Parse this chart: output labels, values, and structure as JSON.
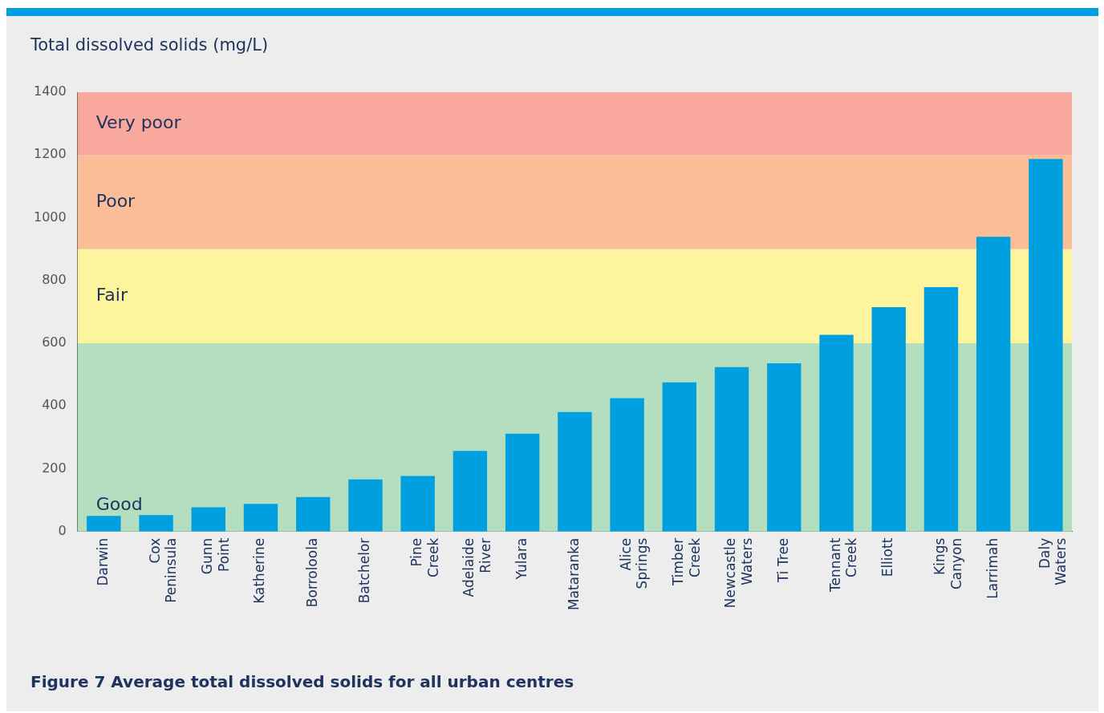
{
  "chart_data": {
    "type": "bar",
    "ylabel": "Total dissolved solids (mg/L)",
    "categories": [
      "Darwin",
      "Cox Peninsula",
      "Gunn Point",
      "Katherine",
      "Borroloola",
      "Batchelor",
      "Pine Creek",
      "Adelaide River",
      "Yulara",
      "Mataranka",
      "Alice Springs",
      "Timber Creek",
      "Newcastle Waters",
      "Ti Tree",
      "Tennant Creek",
      "Elliott",
      "Kings Canyon",
      "Larrimah",
      "Daly Waters"
    ],
    "values": [
      50,
      52,
      77,
      88,
      110,
      166,
      177,
      257,
      312,
      381,
      425,
      475,
      524,
      536,
      627,
      715,
      779,
      939,
      1187
    ],
    "color": "#009fe0",
    "ylim": [
      0,
      1400
    ],
    "yticks": [
      0,
      200,
      400,
      600,
      800,
      1000,
      1200,
      1400
    ],
    "grid": false,
    "bands": [
      {
        "axis": "y",
        "from": 0,
        "to": 600,
        "label": "Good",
        "color": "#b3dfc0"
      },
      {
        "axis": "y",
        "from": 600,
        "to": 900,
        "label": "Fair",
        "color": "#fdf59e"
      },
      {
        "axis": "y",
        "from": 900,
        "to": 1200,
        "label": "Poor",
        "color": "#fbbd98"
      },
      {
        "axis": "y",
        "from": 1200,
        "to": 1400,
        "label": "Very poor",
        "color": "#f8a89c"
      }
    ],
    "annotations": [
      "Figure 7 Average total dissolved solids for all urban centres"
    ]
  }
}
